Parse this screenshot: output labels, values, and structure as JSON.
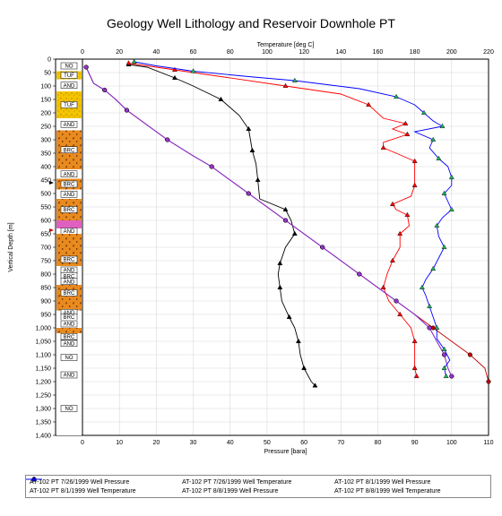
{
  "chart_data": {
    "type": "line",
    "title": "Geology Well Lithology and Reservoir Downhole PT",
    "ylabel": "Vertical Depth [m]",
    "x2label": "Temperature [deg C]",
    "xlabel": "Pressure [bara]",
    "ylim": [
      0,
      1400
    ],
    "y_reversed": true,
    "xlim_pressure": [
      0,
      110
    ],
    "xlim_temperature": [
      0,
      220
    ],
    "y_ticks": [
      "0",
      "50",
      "100",
      "150",
      "200",
      "250",
      "300",
      "350",
      "400",
      "450",
      "500",
      "550",
      "600",
      "650",
      "700",
      "750",
      "800",
      "850",
      "900",
      "950",
      "1,000",
      "1,050",
      "1,100",
      "1,150",
      "1,200",
      "1,250",
      "1,300",
      "1,350",
      "1,400"
    ],
    "x_ticks_pressure": [
      "0",
      "10",
      "20",
      "30",
      "40",
      "50",
      "60",
      "70",
      "80",
      "90",
      "100",
      "110"
    ],
    "x_ticks_temperature": [
      "0",
      "20",
      "40",
      "60",
      "80",
      "100",
      "120",
      "140",
      "160",
      "180",
      "200",
      "220"
    ],
    "grid": true,
    "legend_position": "bottom",
    "lithology": [
      {
        "top": 5,
        "bottom": 45,
        "label": "NO",
        "pattern": "none"
      },
      {
        "top": 45,
        "bottom": 75,
        "label": "TUF",
        "pattern": "tuf"
      },
      {
        "top": 75,
        "bottom": 120,
        "label": "AND",
        "pattern": "none"
      },
      {
        "top": 120,
        "bottom": 220,
        "label": "TUF",
        "pattern": "tuf"
      },
      {
        "top": 220,
        "bottom": 265,
        "label": "AND",
        "pattern": "none"
      },
      {
        "top": 265,
        "bottom": 410,
        "label": "BRC",
        "pattern": "brc"
      },
      {
        "top": 410,
        "bottom": 445,
        "label": "AND",
        "pattern": "none"
      },
      {
        "top": 445,
        "bottom": 485,
        "label": "BRC",
        "pattern": "brc"
      },
      {
        "top": 485,
        "bottom": 520,
        "label": "AND",
        "pattern": "none"
      },
      {
        "top": 520,
        "bottom": 600,
        "label": "BRC",
        "pattern": "brc"
      },
      {
        "top": 600,
        "bottom": 630,
        "label": "",
        "pattern": "pink"
      },
      {
        "top": 630,
        "bottom": 650,
        "label": "AND",
        "pattern": "none"
      },
      {
        "top": 650,
        "bottom": 720,
        "label": "",
        "pattern": "brc"
      },
      {
        "top": 720,
        "bottom": 770,
        "label": "BRC",
        "pattern": "brc"
      },
      {
        "top": 770,
        "bottom": 800,
        "label": "AND",
        "pattern": "none"
      },
      {
        "top": 800,
        "bottom": 815,
        "label": "BRC",
        "pattern": "none"
      },
      {
        "top": 815,
        "bottom": 840,
        "label": "AND",
        "pattern": "none"
      },
      {
        "top": 840,
        "bottom": 900,
        "label": "BRC",
        "pattern": "brc"
      },
      {
        "top": 900,
        "bottom": 935,
        "label": "",
        "pattern": "brc"
      },
      {
        "top": 935,
        "bottom": 950,
        "label": "AND",
        "pattern": "none"
      },
      {
        "top": 950,
        "bottom": 970,
        "label": "BRC",
        "pattern": "none"
      },
      {
        "top": 970,
        "bottom": 1000,
        "label": "AND",
        "pattern": "none"
      },
      {
        "top": 1000,
        "bottom": 1020,
        "label": "",
        "pattern": "brc"
      },
      {
        "top": 1020,
        "bottom": 1045,
        "label": "BRC",
        "pattern": "none"
      },
      {
        "top": 1045,
        "bottom": 1070,
        "label": "AND",
        "pattern": "none"
      },
      {
        "top": 1070,
        "bottom": 1150,
        "label": "NO",
        "pattern": "none"
      },
      {
        "top": 1150,
        "bottom": 1200,
        "label": "AND",
        "pattern": "none"
      },
      {
        "top": 1200,
        "bottom": 1400,
        "label": "NO",
        "pattern": "none"
      }
    ],
    "series": [
      {
        "name": "AT-102 PT 7/26/1999 Well Pressure",
        "axis": "pressure",
        "color": "#c00000",
        "marker": "circle",
        "points": [
          [
            1,
            30
          ],
          [
            3,
            90
          ],
          [
            6,
            115
          ],
          [
            9,
            150
          ],
          [
            12,
            190
          ],
          [
            18,
            250
          ],
          [
            23,
            300
          ],
          [
            30,
            360
          ],
          [
            35,
            400
          ],
          [
            40,
            450
          ],
          [
            45,
            500
          ],
          [
            50,
            550
          ],
          [
            55,
            600
          ],
          [
            60,
            650
          ],
          [
            65,
            700
          ],
          [
            70,
            750
          ],
          [
            75,
            800
          ],
          [
            80,
            850
          ],
          [
            85,
            900
          ],
          [
            90,
            950
          ],
          [
            95,
            1000
          ],
          [
            100,
            1050
          ],
          [
            105,
            1100
          ],
          [
            109,
            1150
          ],
          [
            110,
            1200
          ]
        ]
      },
      {
        "name": "AT-102 PT 7/26/1999 Well Temperature",
        "axis": "temperature",
        "color": "#000000",
        "marker": "triangle",
        "points": [
          [
            25,
            20
          ],
          [
            35,
            30
          ],
          [
            50,
            70
          ],
          [
            60,
            100
          ],
          [
            75,
            150
          ],
          [
            85,
            210
          ],
          [
            90,
            260
          ],
          [
            91,
            300
          ],
          [
            92,
            340
          ],
          [
            94,
            390
          ],
          [
            95,
            450
          ],
          [
            96,
            520
          ],
          [
            110,
            560
          ],
          [
            113,
            600
          ],
          [
            115,
            650
          ],
          [
            110,
            700
          ],
          [
            107,
            760
          ],
          [
            106,
            800
          ],
          [
            107,
            850
          ],
          [
            108,
            900
          ],
          [
            112,
            960
          ],
          [
            115,
            1000
          ],
          [
            117,
            1050
          ],
          [
            118,
            1100
          ],
          [
            120,
            1150
          ],
          [
            124,
            1200
          ],
          [
            126,
            1215
          ]
        ]
      },
      {
        "name": "AT-102 PT 8/1/1999 Well Pressure",
        "axis": "pressure",
        "color": "#0000c0",
        "marker": "circle",
        "points": [
          [
            1,
            30
          ],
          [
            3,
            90
          ],
          [
            6,
            115
          ],
          [
            9,
            150
          ],
          [
            12,
            190
          ],
          [
            18,
            250
          ],
          [
            23,
            300
          ],
          [
            30,
            360
          ],
          [
            35,
            400
          ],
          [
            40,
            450
          ],
          [
            45,
            500
          ],
          [
            50,
            550
          ],
          [
            55,
            600
          ],
          [
            60,
            650
          ],
          [
            65,
            700
          ],
          [
            70,
            750
          ],
          [
            75,
            800
          ],
          [
            80,
            850
          ],
          [
            85,
            900
          ],
          [
            90,
            950
          ],
          [
            94,
            1000
          ],
          [
            96,
            1050
          ],
          [
            98,
            1100
          ],
          [
            99,
            1150
          ],
          [
            100,
            1180
          ]
        ]
      },
      {
        "name": "AT-102 PT 8/1/1999 Well Temperature",
        "axis": "temperature",
        "color": "#ff0000",
        "marker": "triangle",
        "points": [
          [
            25,
            15
          ],
          [
            35,
            25
          ],
          [
            50,
            40
          ],
          [
            70,
            60
          ],
          [
            110,
            100
          ],
          [
            140,
            130
          ],
          [
            155,
            170
          ],
          [
            163,
            220
          ],
          [
            175,
            240
          ],
          [
            168,
            260
          ],
          [
            176,
            280
          ],
          [
            163,
            310
          ],
          [
            163,
            330
          ],
          [
            170,
            350
          ],
          [
            180,
            380
          ],
          [
            180,
            420
          ],
          [
            180,
            470
          ],
          [
            178,
            510
          ],
          [
            168,
            540
          ],
          [
            170,
            560
          ],
          [
            176,
            580
          ],
          [
            177,
            620
          ],
          [
            172,
            650
          ],
          [
            172,
            700
          ],
          [
            168,
            750
          ],
          [
            165,
            800
          ],
          [
            163,
            850
          ],
          [
            166,
            900
          ],
          [
            172,
            950
          ],
          [
            178,
            1000
          ],
          [
            180,
            1050
          ],
          [
            180,
            1100
          ],
          [
            180,
            1150
          ],
          [
            181,
            1180
          ]
        ]
      },
      {
        "name": "AT-102 PT 8/8/1999 Well Pressure",
        "axis": "pressure",
        "color": "#9932cc",
        "marker": "circle",
        "points": [
          [
            1,
            30
          ],
          [
            3,
            90
          ],
          [
            6,
            115
          ],
          [
            9,
            150
          ],
          [
            12,
            190
          ],
          [
            18,
            250
          ],
          [
            23,
            300
          ],
          [
            30,
            360
          ],
          [
            35,
            400
          ],
          [
            40,
            450
          ],
          [
            45,
            500
          ],
          [
            50,
            550
          ],
          [
            55,
            600
          ],
          [
            60,
            650
          ],
          [
            65,
            700
          ],
          [
            70,
            750
          ],
          [
            75,
            800
          ],
          [
            80,
            850
          ],
          [
            85,
            900
          ],
          [
            90,
            950
          ],
          [
            94,
            1000
          ],
          [
            96,
            1050
          ],
          [
            98,
            1100
          ],
          [
            99,
            1150
          ],
          [
            100,
            1180
          ]
        ]
      },
      {
        "name": "AT-102 PT 8/8/1999 Well Temperature",
        "axis": "temperature",
        "color": "#0000ff",
        "marker": "triangle",
        "points": [
          [
            28,
            10
          ],
          [
            40,
            25
          ],
          [
            60,
            45
          ],
          [
            90,
            65
          ],
          [
            115,
            80
          ],
          [
            150,
            110
          ],
          [
            170,
            140
          ],
          [
            180,
            170
          ],
          [
            185,
            200
          ],
          [
            190,
            230
          ],
          [
            195,
            250
          ],
          [
            180,
            270
          ],
          [
            190,
            300
          ],
          [
            188,
            330
          ],
          [
            193,
            370
          ],
          [
            198,
            400
          ],
          [
            200,
            440
          ],
          [
            200,
            470
          ],
          [
            196,
            500
          ],
          [
            198,
            530
          ],
          [
            200,
            560
          ],
          [
            195,
            590
          ],
          [
            192,
            620
          ],
          [
            193,
            660
          ],
          [
            196,
            700
          ],
          [
            193,
            740
          ],
          [
            190,
            780
          ],
          [
            186,
            820
          ],
          [
            184,
            850
          ],
          [
            186,
            880
          ],
          [
            188,
            920
          ],
          [
            190,
            960
          ],
          [
            192,
            1000
          ],
          [
            192,
            1040
          ],
          [
            196,
            1080
          ],
          [
            199,
            1120
          ],
          [
            196,
            1150
          ],
          [
            197,
            1180
          ]
        ]
      },
      {
        "name": "",
        "axis": "temperature",
        "color": "#00a000",
        "marker": "circle",
        "points": [
          [
            1,
            30
          ],
          [
            3,
            90
          ],
          [
            6,
            115
          ],
          [
            9,
            150
          ],
          [
            12,
            190
          ],
          [
            18,
            250
          ],
          [
            23,
            300
          ],
          [
            30,
            360
          ],
          [
            35,
            400
          ],
          [
            40,
            450
          ],
          [
            45,
            500
          ],
          [
            50,
            550
          ],
          [
            55,
            600
          ],
          [
            60,
            650
          ],
          [
            65,
            700
          ],
          [
            70,
            750
          ],
          [
            75,
            800
          ],
          [
            80,
            850
          ],
          [
            85,
            900
          ],
          [
            90,
            950
          ],
          [
            94,
            1000
          ],
          [
            96,
            1050
          ],
          [
            98,
            1100
          ],
          [
            99,
            1150
          ],
          [
            100,
            1180
          ]
        ],
        "is_pressure_marker_overlay": true
      }
    ]
  },
  "legend": [
    {
      "label": "AT-102 PT 7/26/1999 Well Pressure",
      "color": "#c00000",
      "marker": "circle"
    },
    {
      "label": "AT-102 PT 7/26/1999 Well Temperature",
      "color": "#000000",
      "marker": "triangle"
    },
    {
      "label": "AT-102 PT 8/1/1999 Well Pressure",
      "color": "#0000c0",
      "marker": "circle"
    },
    {
      "label": "AT-102 PT 8/1/1999 Well Temperature",
      "color": "#ff0000",
      "marker": "triangle"
    },
    {
      "label": "AT-102 PT 8/8/1999 Well Pressure",
      "color": "#9932cc",
      "marker": "circle"
    },
    {
      "label": "AT-102 PT 8/8/1999 Well Temperature",
      "color": "#0000ff",
      "marker": "triangle"
    }
  ]
}
